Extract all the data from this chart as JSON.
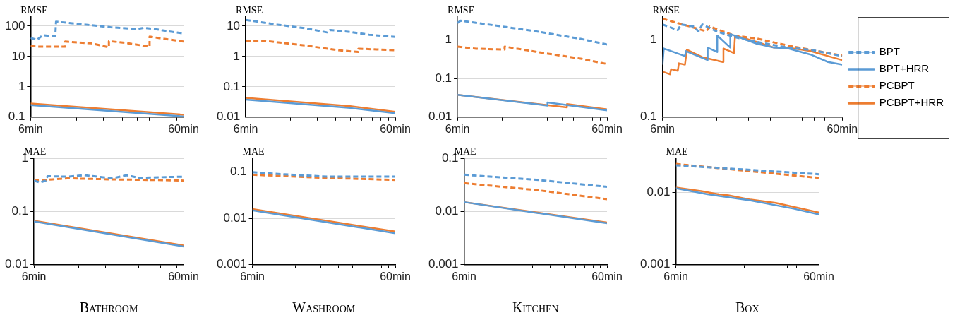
{
  "chart_data": [
    {
      "type": "line",
      "ylabel": "RMSE",
      "log": "xy",
      "grid": "y",
      "marker": "none",
      "xlim": [
        6,
        60
      ],
      "xticks": [
        {
          "value": 6,
          "label": "6min"
        },
        {
          "value": 12,
          "label": null
        },
        {
          "value": 18,
          "label": null
        },
        {
          "value": 24,
          "label": null
        },
        {
          "value": 30,
          "label": null
        },
        {
          "value": 36,
          "label": null
        },
        {
          "value": 42,
          "label": null
        },
        {
          "value": 48,
          "label": null
        },
        {
          "value": 54,
          "label": null
        },
        {
          "value": 60,
          "label": "60min"
        }
      ],
      "ylim": [
        0.1,
        200
      ],
      "yticks": [
        0.1,
        1,
        10,
        100
      ],
      "series": [
        {
          "color": "#5b9bd5",
          "line_style": "dashed",
          "x": [
            6,
            6.6,
            7.2,
            8.7,
            8.8,
            12,
            20,
            30,
            33,
            40,
            50,
            60
          ],
          "values": [
            41,
            35,
            50,
            46,
            140,
            120,
            92,
            80,
            88,
            78,
            65,
            57
          ]
        },
        {
          "color": "#5b9bd5",
          "line_style": "solid",
          "x": [
            6,
            60
          ],
          "values": [
            0.25,
            0.105
          ]
        },
        {
          "color": "#ed7d31",
          "line_style": "dashed",
          "x": [
            6,
            6.5,
            10.1,
            10.1,
            15,
            19.5,
            19.5,
            25,
            36,
            36,
            45,
            60
          ],
          "values": [
            23,
            21,
            21,
            31,
            27,
            20,
            32,
            28,
            21,
            45,
            38,
            31
          ]
        },
        {
          "color": "#ed7d31",
          "line_style": "solid",
          "x": [
            6,
            60
          ],
          "values": [
            0.28,
            0.12
          ]
        }
      ]
    },
    {
      "type": "line",
      "ylabel": "RMSE",
      "log": "xy",
      "grid": "y",
      "marker": "none",
      "xlim": [
        6,
        60
      ],
      "xticks": [
        {
          "value": 6,
          "label": "6min"
        },
        {
          "value": 12,
          "label": null
        },
        {
          "value": 18,
          "label": null
        },
        {
          "value": 24,
          "label": null
        },
        {
          "value": 30,
          "label": null
        },
        {
          "value": 36,
          "label": null
        },
        {
          "value": 42,
          "label": null
        },
        {
          "value": 48,
          "label": null
        },
        {
          "value": 54,
          "label": null
        },
        {
          "value": 60,
          "label": "60min"
        }
      ],
      "ylim": [
        0.01,
        20
      ],
      "yticks": [
        0.01,
        0.1,
        1,
        10
      ],
      "series": [
        {
          "color": "#5b9bd5",
          "line_style": "dashed",
          "x": [
            6,
            10,
            15,
            21,
            22,
            30,
            40,
            60
          ],
          "values": [
            16,
            11,
            8.5,
            6.2,
            7.4,
            6.4,
            5.2,
            4.4
          ]
        },
        {
          "color": "#5b9bd5",
          "line_style": "solid",
          "x": [
            6,
            30,
            60
          ],
          "values": [
            0.038,
            0.02,
            0.0135
          ]
        },
        {
          "color": "#ed7d31",
          "line_style": "dashed",
          "x": [
            6,
            8,
            15,
            25,
            34,
            34,
            45,
            60
          ],
          "values": [
            3.3,
            3.3,
            2.3,
            1.6,
            1.4,
            1.8,
            1.7,
            1.6
          ]
        },
        {
          "color": "#ed7d31",
          "line_style": "solid",
          "x": [
            6,
            30,
            60
          ],
          "values": [
            0.043,
            0.023,
            0.015
          ]
        }
      ]
    },
    {
      "type": "line",
      "ylabel": "RMSE",
      "log": "xy",
      "grid": "y",
      "marker": "none",
      "xlim": [
        6,
        60
      ],
      "xticks": [
        {
          "value": 6,
          "label": "6min"
        },
        {
          "value": 12,
          "label": null
        },
        {
          "value": 18,
          "label": null
        },
        {
          "value": 24,
          "label": null
        },
        {
          "value": 30,
          "label": null
        },
        {
          "value": 36,
          "label": null
        },
        {
          "value": 42,
          "label": null
        },
        {
          "value": 48,
          "label": null
        },
        {
          "value": 54,
          "label": null
        },
        {
          "value": 60,
          "label": "60min"
        }
      ],
      "ylim": [
        0.01,
        4
      ],
      "yticks": [
        0.01,
        0.1,
        1
      ],
      "series": [
        {
          "color": "#5b9bd5",
          "line_style": "dashed",
          "x": [
            6,
            6.3,
            10,
            20,
            40,
            60
          ],
          "values": [
            2.8,
            3.2,
            2.5,
            1.7,
            1.08,
            0.77
          ]
        },
        {
          "color": "#5b9bd5",
          "line_style": "solid",
          "x": [
            6,
            24,
            24,
            60
          ],
          "values": [
            0.038,
            0.02,
            0.024,
            0.015
          ]
        },
        {
          "color": "#ed7d31",
          "line_style": "dashed",
          "x": [
            6,
            8,
            12.4,
            12.4,
            20,
            40,
            60
          ],
          "values": [
            0.68,
            0.6,
            0.57,
            0.68,
            0.5,
            0.33,
            0.24
          ]
        },
        {
          "color": "#ed7d31",
          "line_style": "solid",
          "x": [
            6,
            32.4,
            32.4,
            60
          ],
          "values": [
            0.038,
            0.018,
            0.022,
            0.016
          ]
        }
      ]
    },
    {
      "type": "line",
      "ylabel": "RMSE",
      "log": "xy",
      "grid": "y",
      "marker": "none",
      "legend": "right",
      "xlim": [
        6,
        60
      ],
      "xticks": [
        {
          "value": 6,
          "label": "6min"
        },
        {
          "value": 12,
          "label": null
        },
        {
          "value": 18,
          "label": null
        },
        {
          "value": 24,
          "label": null
        },
        {
          "value": 30,
          "label": null
        },
        {
          "value": 36,
          "label": null
        },
        {
          "value": 42,
          "label": null
        },
        {
          "value": 48,
          "label": null
        },
        {
          "value": 54,
          "label": null
        },
        {
          "value": 60,
          "label": "60min"
        }
      ],
      "ylim": [
        0.1,
        2
      ],
      "yticks": [
        0.1,
        1
      ],
      "series": [
        {
          "name": "BPT",
          "color": "#5b9bd5",
          "line_style": "dashed",
          "x": [
            6,
            7.3,
            7.6,
            9,
            9.5,
            10,
            12,
            15,
            20,
            30,
            40,
            60
          ],
          "values": [
            1.6,
            1.35,
            1.6,
            1.5,
            1.3,
            1.6,
            1.3,
            1.1,
            0.95,
            0.8,
            0.75,
            0.62
          ]
        },
        {
          "name": "BPT+HRR",
          "color": "#5b9bd5",
          "line_style": "solid",
          "x": [
            6,
            6.1,
            8,
            8.1,
            10.7,
            10.7,
            12.1,
            12.1,
            14.3,
            14.3,
            20,
            25,
            30,
            40,
            50,
            60
          ],
          "values": [
            0.48,
            0.78,
            0.62,
            0.72,
            0.55,
            0.8,
            0.7,
            1.15,
            0.8,
            1.2,
            0.9,
            0.8,
            0.78,
            0.65,
            0.52,
            0.48
          ]
        },
        {
          "name": "PCBPT",
          "color": "#ed7d31",
          "line_style": "dashed",
          "x": [
            6,
            9,
            10.5,
            11,
            15,
            20,
            30,
            60
          ],
          "values": [
            1.9,
            1.45,
            1.3,
            1.5,
            1.15,
            1.05,
            0.85,
            0.63
          ]
        },
        {
          "name": "PCBPT+HRR",
          "color": "#ed7d31",
          "line_style": "solid",
          "x": [
            6,
            6.6,
            6.7,
            7.3,
            7.4,
            8,
            8.2,
            10,
            13,
            13.1,
            15,
            15.2,
            20,
            25,
            30,
            40,
            60
          ],
          "values": [
            0.39,
            0.36,
            0.42,
            0.4,
            0.5,
            0.48,
            0.75,
            0.6,
            0.52,
            0.78,
            0.68,
            1.15,
            0.95,
            0.8,
            0.8,
            0.72,
            0.55
          ]
        }
      ]
    },
    {
      "type": "line",
      "ylabel": "MAE",
      "xlabel": "Bathroom",
      "log": "xy",
      "grid": "y",
      "marker": "none",
      "xlim": [
        6,
        60
      ],
      "xticks": [
        {
          "value": 6,
          "label": "6min"
        },
        {
          "value": 12,
          "label": null
        },
        {
          "value": 18,
          "label": null
        },
        {
          "value": 24,
          "label": null
        },
        {
          "value": 30,
          "label": null
        },
        {
          "value": 36,
          "label": null
        },
        {
          "value": 42,
          "label": null
        },
        {
          "value": 48,
          "label": null
        },
        {
          "value": 54,
          "label": null
        },
        {
          "value": 60,
          "label": "60min"
        }
      ],
      "ylim": [
        0.01,
        1
      ],
      "yticks": [
        0.01,
        0.1,
        1
      ],
      "series": [
        {
          "color": "#5b9bd5",
          "line_style": "dashed",
          "x": [
            6,
            6.6,
            7.2,
            7.4,
            10,
            13,
            20,
            25,
            30,
            60
          ],
          "values": [
            0.38,
            0.35,
            0.38,
            0.46,
            0.45,
            0.48,
            0.42,
            0.48,
            0.43,
            0.45
          ]
        },
        {
          "color": "#5b9bd5",
          "line_style": "solid",
          "x": [
            6,
            60
          ],
          "values": [
            0.065,
            0.022
          ]
        },
        {
          "color": "#ed7d31",
          "line_style": "dashed",
          "x": [
            6,
            8,
            10,
            20,
            40,
            60
          ],
          "values": [
            0.38,
            0.4,
            0.42,
            0.4,
            0.39,
            0.38
          ]
        },
        {
          "color": "#ed7d31",
          "line_style": "solid",
          "x": [
            6,
            60
          ],
          "values": [
            0.067,
            0.023
          ]
        }
      ]
    },
    {
      "type": "line",
      "ylabel": "MAE",
      "xlabel": "Washroom",
      "log": "xy",
      "grid": "y",
      "marker": "none",
      "xlim": [
        6,
        60
      ],
      "xticks": [
        {
          "value": 6,
          "label": "6min"
        },
        {
          "value": 12,
          "label": null
        },
        {
          "value": 18,
          "label": null
        },
        {
          "value": 24,
          "label": null
        },
        {
          "value": 30,
          "label": null
        },
        {
          "value": 36,
          "label": null
        },
        {
          "value": 42,
          "label": null
        },
        {
          "value": 48,
          "label": null
        },
        {
          "value": 54,
          "label": null
        },
        {
          "value": 60,
          "label": "60min"
        }
      ],
      "ylim": [
        0.001,
        0.2
      ],
      "yticks": [
        0.001,
        0.01,
        0.1
      ],
      "series": [
        {
          "color": "#5b9bd5",
          "line_style": "dashed",
          "x": [
            6,
            10,
            20,
            60
          ],
          "values": [
            0.1,
            0.09,
            0.08,
            0.08
          ]
        },
        {
          "color": "#5b9bd5",
          "line_style": "solid",
          "x": [
            6,
            60
          ],
          "values": [
            0.015,
            0.0048
          ]
        },
        {
          "color": "#ed7d31",
          "line_style": "dashed",
          "x": [
            6,
            20,
            60
          ],
          "values": [
            0.088,
            0.075,
            0.068
          ]
        },
        {
          "color": "#ed7d31",
          "line_style": "solid",
          "x": [
            6,
            60
          ],
          "values": [
            0.016,
            0.0052
          ]
        }
      ]
    },
    {
      "type": "line",
      "ylabel": "MAE",
      "xlabel": "Kitchen",
      "log": "xy",
      "grid": "y",
      "marker": "none",
      "xlim": [
        6,
        60
      ],
      "xticks": [
        {
          "value": 6,
          "label": "6min"
        },
        {
          "value": 12,
          "label": null
        },
        {
          "value": 18,
          "label": null
        },
        {
          "value": 24,
          "label": null
        },
        {
          "value": 30,
          "label": null
        },
        {
          "value": 36,
          "label": null
        },
        {
          "value": 42,
          "label": null
        },
        {
          "value": 48,
          "label": null
        },
        {
          "value": 54,
          "label": null
        },
        {
          "value": 60,
          "label": "60min"
        }
      ],
      "ylim": [
        0.001,
        0.1
      ],
      "yticks": [
        0.001,
        0.01,
        0.1
      ],
      "series": [
        {
          "color": "#5b9bd5",
          "line_style": "dashed",
          "x": [
            6,
            20,
            60
          ],
          "values": [
            0.049,
            0.039,
            0.029
          ]
        },
        {
          "color": "#5b9bd5",
          "line_style": "solid",
          "x": [
            6,
            60
          ],
          "values": [
            0.015,
            0.006
          ]
        },
        {
          "color": "#ed7d31",
          "line_style": "dashed",
          "x": [
            6,
            20,
            60
          ],
          "values": [
            0.034,
            0.025,
            0.017
          ]
        },
        {
          "color": "#ed7d31",
          "line_style": "solid",
          "x": [
            6,
            60
          ],
          "values": [
            0.015,
            0.0062
          ]
        }
      ]
    },
    {
      "type": "line",
      "ylabel": "MAE",
      "xlabel": "Box",
      "log": "xy",
      "grid": "y",
      "marker": "none",
      "xlim": [
        6,
        60
      ],
      "xticks": [
        {
          "value": 6,
          "label": "6min"
        },
        {
          "value": 12,
          "label": null
        },
        {
          "value": 18,
          "label": null
        },
        {
          "value": 24,
          "label": null
        },
        {
          "value": 30,
          "label": null
        },
        {
          "value": 36,
          "label": null
        },
        {
          "value": 42,
          "label": null
        },
        {
          "value": 48,
          "label": null
        },
        {
          "value": 54,
          "label": null
        },
        {
          "value": 60,
          "label": "60min"
        }
      ],
      "ylim": [
        0.001,
        0.03
      ],
      "yticks": [
        0.001,
        0.01
      ],
      "series": [
        {
          "color": "#5b9bd5",
          "line_style": "dashed",
          "x": [
            6,
            60
          ],
          "values": [
            0.024,
            0.018
          ]
        },
        {
          "color": "#5b9bd5",
          "line_style": "solid",
          "x": [
            6,
            10,
            20,
            40,
            60
          ],
          "values": [
            0.0115,
            0.0095,
            0.0078,
            0.006,
            0.005
          ]
        },
        {
          "color": "#ed7d31",
          "line_style": "dashed",
          "x": [
            6,
            60
          ],
          "values": [
            0.025,
            0.016
          ]
        },
        {
          "color": "#ed7d31",
          "line_style": "solid",
          "x": [
            6,
            9,
            12,
            14,
            20,
            30,
            60
          ],
          "values": [
            0.0118,
            0.0105,
            0.0095,
            0.0092,
            0.008,
            0.0072,
            0.0053
          ]
        }
      ]
    }
  ]
}
